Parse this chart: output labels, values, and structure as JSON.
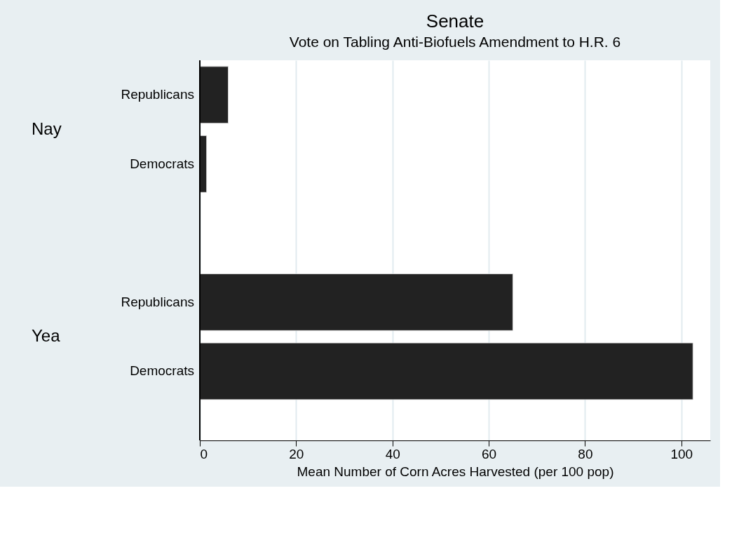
{
  "chart_data": {
    "type": "bar",
    "orientation": "horizontal",
    "title": "Senate",
    "subtitle": "Vote on Tabling Anti-Biofuels Amendment to H.R. 6",
    "xlabel": "Mean Number of Corn Acres Harvested (per 100 pop)",
    "categories": [
      "Republicans",
      "Democrats",
      "Republicans",
      "Democrats"
    ],
    "annotations": [
      "Nay",
      "Yea"
    ],
    "values": [
      5.9,
      1.4,
      65,
      102.4
    ],
    "color": "#222222",
    "xlim": [
      0,
      106
    ],
    "xticks": [
      0,
      20,
      40,
      60,
      80,
      100
    ],
    "grid": "x",
    "legend": false
  }
}
